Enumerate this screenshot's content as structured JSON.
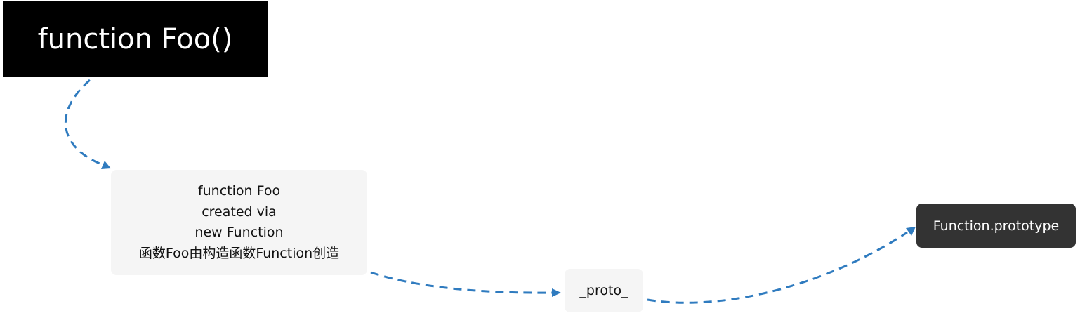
{
  "nodes": {
    "title": {
      "label": "function Foo()"
    },
    "foo_function": {
      "lines": [
        "function Foo",
        "created via",
        "new Function",
        "函数Foo由构造函数Function创造"
      ]
    },
    "proto": {
      "label": "_proto_"
    },
    "function_prototype": {
      "label": "Function.prototype"
    }
  },
  "colors": {
    "edge": "#2f7bbf",
    "title_bg": "#000000",
    "light_node_bg": "#f5f5f5",
    "dark_node_bg": "#333333"
  }
}
